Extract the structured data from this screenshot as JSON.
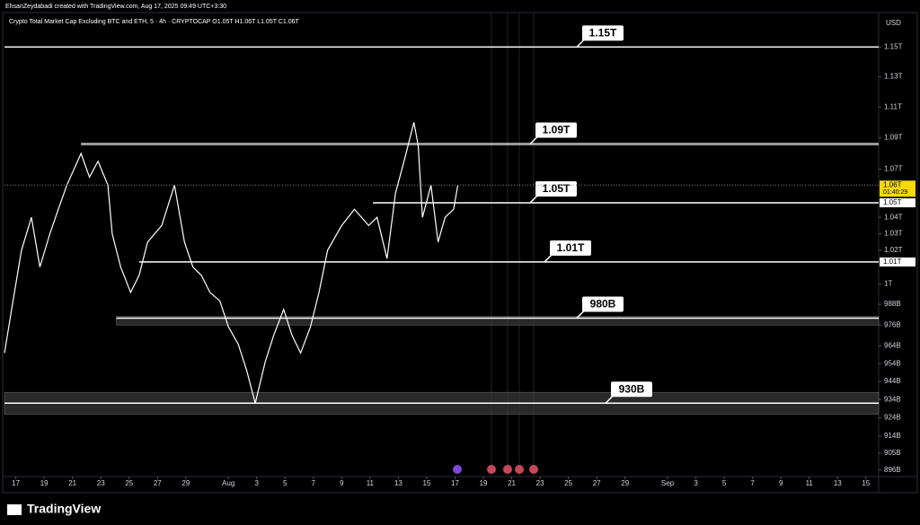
{
  "header": {
    "credit": "EhsanZeydabadi created with TradingView.com, Aug 17, 2025 09:49 UTC+3:30",
    "legend": "Crypto Total Market Cap Excluding BTC and ETH, 5 · 4h · CRYPTOCAP  O1.05T  H1.06T  L1.05T  C1.06T",
    "currency": "USD"
  },
  "footer": {
    "brand": "TradingView"
  },
  "chart_data": {
    "type": "line",
    "log_scale": true,
    "grid": false,
    "yaxis": "right",
    "color": "#ffffff",
    "x": [
      -0.8,
      -0.2,
      0.4,
      1.1,
      1.7,
      2.4,
      3.0,
      3.6,
      4.6,
      5.2,
      5.8,
      6.5,
      6.8,
      7.4,
      8.1,
      8.7,
      9.3,
      10.3,
      11.2,
      11.9,
      12.5,
      13.1,
      13.7,
      14.4,
      15.0,
      15.7,
      16.3,
      16.9,
      17.6,
      18.2,
      18.9,
      19.5,
      20.1,
      20.8,
      21.4,
      22.0,
      23.0,
      23.9,
      24.9,
      25.5,
      26.2,
      26.8,
      27.4,
      28.1,
      28.4,
      28.7,
      29.3,
      29.8,
      30.3,
      30.9,
      31.2
    ],
    "values": [
      960,
      990,
      1020,
      1040,
      1010,
      1030,
      1045,
      1060,
      1080,
      1065,
      1075,
      1060,
      1030,
      1010,
      995,
      1005,
      1025,
      1035,
      1060,
      1025,
      1010,
      1005,
      995,
      990,
      975,
      965,
      950,
      932,
      955,
      970,
      985,
      970,
      960,
      975,
      995,
      1020,
      1035,
      1045,
      1035,
      1040,
      1015,
      1055,
      1075,
      1100,
      1085,
      1040,
      1060,
      1025,
      1040,
      1045,
      1060
    ],
    "xlim": [
      -0.8,
      60.9
    ],
    "ylim": [
      893,
      1173
    ],
    "xticks": [
      {
        "value": 0,
        "label": "17"
      },
      {
        "value": 2,
        "label": "19"
      },
      {
        "value": 4,
        "label": "21"
      },
      {
        "value": 6,
        "label": "23"
      },
      {
        "value": 8,
        "label": "25"
      },
      {
        "value": 10,
        "label": "27"
      },
      {
        "value": 12,
        "label": "29"
      },
      {
        "value": 15,
        "label": "Aug"
      },
      {
        "value": 17,
        "label": "3"
      },
      {
        "value": 19,
        "label": "5"
      },
      {
        "value": 21,
        "label": "7"
      },
      {
        "value": 23,
        "label": "9"
      },
      {
        "value": 25,
        "label": "11"
      },
      {
        "value": 27,
        "label": "13"
      },
      {
        "value": 29,
        "label": "15"
      },
      {
        "value": 31,
        "label": "17"
      },
      {
        "value": 33,
        "label": "19"
      },
      {
        "value": 35,
        "label": "21"
      },
      {
        "value": 37,
        "label": "23"
      },
      {
        "value": 39,
        "label": "25"
      },
      {
        "value": 41,
        "label": "27"
      },
      {
        "value": 43,
        "label": "29"
      },
      {
        "value": 46,
        "label": "Sep"
      },
      {
        "value": 48,
        "label": "3"
      },
      {
        "value": 50,
        "label": "5"
      },
      {
        "value": 52,
        "label": "7"
      },
      {
        "value": 54,
        "label": "9"
      },
      {
        "value": 56,
        "label": "11"
      },
      {
        "value": 58,
        "label": "13"
      },
      {
        "value": 60,
        "label": "15"
      }
    ],
    "yticks": [
      {
        "value": 1150,
        "label": "1.15T"
      },
      {
        "value": 1130,
        "label": "1.13T"
      },
      {
        "value": 1110,
        "label": "1.11T"
      },
      {
        "value": 1090,
        "label": "1.09T"
      },
      {
        "value": 1070,
        "label": "1.07T"
      },
      {
        "value": 1040,
        "label": "1.04T"
      },
      {
        "value": 1030,
        "label": "1.03T"
      },
      {
        "value": 1020,
        "label": "1.02T"
      },
      {
        "value": 1000,
        "label": "1T"
      },
      {
        "value": 988,
        "label": "988B"
      },
      {
        "value": 976,
        "label": "976B"
      },
      {
        "value": 964,
        "label": "964B"
      },
      {
        "value": 954,
        "label": "954B"
      },
      {
        "value": 944,
        "label": "944B"
      },
      {
        "value": 934,
        "label": "934B"
      },
      {
        "value": 924,
        "label": "924B"
      },
      {
        "value": 914,
        "label": "914B"
      },
      {
        "value": 905,
        "label": "905B"
      },
      {
        "value": 896,
        "label": "896B"
      }
    ],
    "price_badges": [
      {
        "value": 1060,
        "label": "1.06T",
        "timer": "01:40:29",
        "color": "#f5d90a"
      },
      {
        "value": 1049,
        "label": "1.05T",
        "color": "#ffffff"
      },
      {
        "value": 1013,
        "label": "1.01T",
        "color": "#ffffff"
      }
    ],
    "levels": [
      {
        "label": "1.15T",
        "value": 1150,
        "start": -0.8
      },
      {
        "label": "1.09T",
        "value": 1086,
        "start": 4.6
      },
      {
        "label": "1.05T",
        "value": 1049,
        "start": 25.2
      },
      {
        "label": "1.01T",
        "value": 1013,
        "start": 8.7
      },
      {
        "label": "980B",
        "value": 980,
        "start": 7.1
      },
      {
        "label": "930B",
        "value": 932,
        "start": -0.8
      }
    ],
    "zones": [
      {
        "low": 976,
        "high": 981,
        "start": 7.1
      },
      {
        "low": 926,
        "high": 938,
        "start": -0.8
      }
    ]
  }
}
